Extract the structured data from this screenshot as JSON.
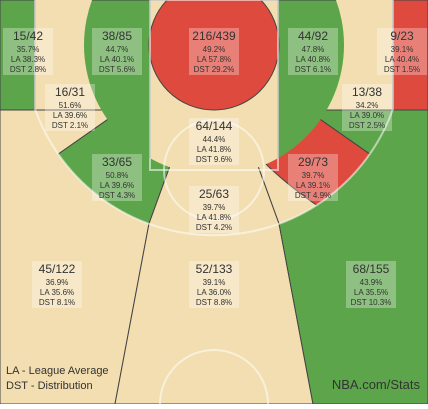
{
  "zones": [
    {
      "fg": "15/42",
      "pct": "35.7%",
      "la": "LA 38.3%",
      "dst": "DST 2.8%",
      "color": "#5da54b"
    },
    {
      "fg": "38/85",
      "pct": "44.7%",
      "la": "LA 40.1%",
      "dst": "DST 5.6%",
      "color": "#5da54b"
    },
    {
      "fg": "216/439",
      "pct": "49.2%",
      "la": "LA 57.8%",
      "dst": "DST 29.2%",
      "color": "#de4a3e"
    },
    {
      "fg": "44/92",
      "pct": "47.8%",
      "la": "LA 40.8%",
      "dst": "DST 6.1%",
      "color": "#5da54b"
    },
    {
      "fg": "9/23",
      "pct": "39.1%",
      "la": "LA 40.4%",
      "dst": "DST 1.5%",
      "color": "#de4a3e"
    },
    {
      "fg": "16/31",
      "pct": "51.6%",
      "la": "LA 39.6%",
      "dst": "DST 2.1%",
      "color": "#5da54b"
    },
    {
      "fg": "13/38",
      "pct": "34.2%",
      "la": "LA 39.0%",
      "dst": "DST 2.5%",
      "color": "#de4a3e"
    },
    {
      "fg": "64/144",
      "pct": "44.4%",
      "la": "LA 41.8%",
      "dst": "DST 9.6%",
      "color": "#f2deb0"
    },
    {
      "fg": "33/65",
      "pct": "50.8%",
      "la": "LA 39.6%",
      "dst": "DST 4.3%",
      "color": "#5da54b"
    },
    {
      "fg": "29/73",
      "pct": "39.7%",
      "la": "LA 39.1%",
      "dst": "DST 4.9%",
      "color": "#f2deb0"
    },
    {
      "fg": "25/63",
      "pct": "39.7%",
      "la": "LA 41.8%",
      "dst": "DST 4.2%",
      "color": "#f2deb0"
    },
    {
      "fg": "45/122",
      "pct": "36.9%",
      "la": "LA 35.6%",
      "dst": "DST 8.1%",
      "color": "#f2deb0"
    },
    {
      "fg": "52/133",
      "pct": "39.1%",
      "la": "LA 36.0%",
      "dst": "DST 8.8%",
      "color": "#f2deb0"
    },
    {
      "fg": "68/155",
      "pct": "43.9%",
      "la": "LA 35.5%",
      "dst": "DST 10.3%",
      "color": "#5da54b"
    }
  ],
  "legend": [
    "LA - League Average",
    "DST - Distribution"
  ],
  "source": "NBA.com/Stats"
}
